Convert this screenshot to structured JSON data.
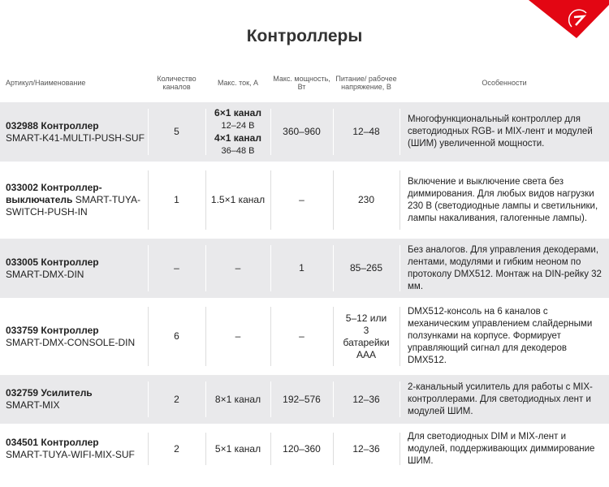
{
  "title": "Контроллеры",
  "brand_color": "#e30613",
  "headers": [
    "Артикул/Наименование",
    "Количество каналов",
    "Макс. ток, А",
    "Макс. мощность, Вт",
    "Питание/ рабочее напряжение, В",
    "Особенности"
  ],
  "rows": [
    {
      "code": "032988 Контроллер",
      "model": "SMART-K41-MULTI-PUSH-SUF",
      "channels": "5",
      "current": [
        "6×1 канал",
        "12–24 В",
        "4×1 канал",
        "36–48 В"
      ],
      "power": "360–960",
      "voltage": "12–48",
      "features": "Многофункциональный контроллер для светодиодных RGB- и MIX-лент и модулей (ШИМ) увеличенной мощности."
    },
    {
      "code": "033002 Контроллер-выключатель",
      "model": "SMART-TUYA-SWITCH-PUSH-IN",
      "channels": "1",
      "current": "1.5×1 канал",
      "power": "–",
      "voltage": "230",
      "features": "Включение и выключение света без диммирования. Для любых видов нагрузки 230 В (светодиодные лампы и светильники, лампы накаливания, галогенные лампы)."
    },
    {
      "code": "033005 Контроллер",
      "model": "SMART-DMX-DIN",
      "channels": "–",
      "current": "–",
      "power": "1",
      "voltage": "85–265",
      "features": "Без аналогов. Для управления декодерами, лентами, модулями и гибким неоном по протоколу DMX512. Монтаж на DIN-рейку 32 мм."
    },
    {
      "code": "033759 Контроллер",
      "model": "SMART-DMX-CONSOLE-DIN",
      "channels": "6",
      "current": "–",
      "power": "–",
      "voltage": "5–12 или 3 батарейки AAA",
      "features": "DMX512-консоль на 6 каналов с механическим управлением слайдерными ползунками на корпусе. Формирует управляющий сигнал для декодеров DMX512."
    },
    {
      "code": "032759 Усилитель",
      "model": "SMART-MIX",
      "channels": "2",
      "current": "8×1 канал",
      "power": "192–576",
      "voltage": "12–36",
      "features": "2-канальный усилитель для работы с MIX-контроллерами. Для светодиодных лент и модулей ШИМ."
    },
    {
      "code": "034501 Контроллер",
      "model": "SMART-TUYA-WIFI-MIX-SUF",
      "channels": "2",
      "current": "5×1 канал",
      "power": "120–360",
      "voltage": "12–36",
      "features": "Для светодиодных DIM и MIX-лент и модулей, поддерживающих диммирование ШИМ."
    }
  ]
}
